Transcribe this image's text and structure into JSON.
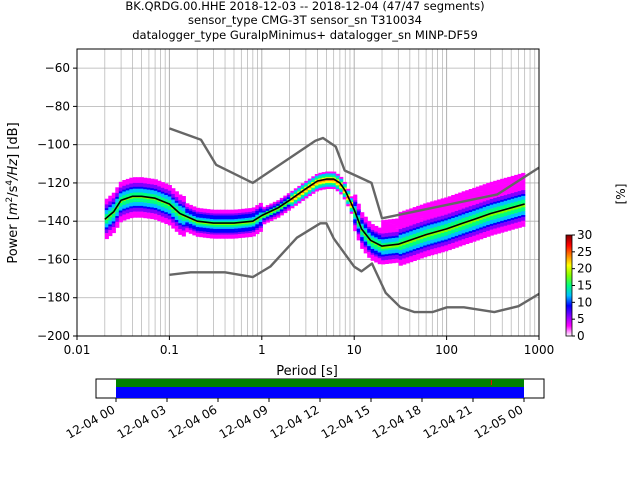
{
  "title_lines": [
    "BK.QRDG.00.HHE   2018-12-03 -- 2018-12-04  (47/47 segments)",
    "sensor_type CMG-3T sensor_sn T310034",
    "datalogger_type GuralpMinimus+ datalogger_sn MINP-DF59"
  ],
  "colors": {
    "median": "#000000",
    "noise_model": "#666666",
    "grid": "#b0b0b0",
    "timeline_ok": "#008000",
    "timeline_data": "#0000ff",
    "timeline_gap": "#ff0000"
  },
  "chart_data": [
    {
      "type": "heatmap",
      "subtype": "ppsd",
      "xlabel": "Period [s]",
      "ylabel": "Power [m²/s⁴/Hz] [dB]",
      "ylabel_parts": {
        "prefix": "Power [",
        "m": "m",
        "exp2": "2",
        "slash_s": "/s",
        "exp4": "4",
        "hz": "/Hz",
        "suffix": "] [dB]"
      },
      "x_scale": "log",
      "xlim": [
        0.01,
        1000
      ],
      "ylim": [
        -200,
        -50
      ],
      "x_ticks": [
        0.01,
        0.1,
        1,
        10,
        100,
        1000
      ],
      "x_tick_labels": [
        "0.01",
        "0.1",
        "1",
        "10",
        "100",
        "1000"
      ],
      "y_ticks": [
        -60,
        -80,
        -100,
        -120,
        -140,
        -160,
        -180,
        -200
      ],
      "y_tick_labels": [
        "−60",
        "−80",
        "−100",
        "−120",
        "−140",
        "−160",
        "−180",
        "−200"
      ],
      "grid": true,
      "colorbar": {
        "label": "[%]",
        "range": [
          0,
          30
        ],
        "ticks": [
          0,
          5,
          10,
          15,
          20,
          25,
          30
        ],
        "tick_labels": [
          "0",
          "5",
          "10",
          "15",
          "20",
          "25",
          "30"
        ],
        "colormap": [
          "#ffffff",
          "#ff00ff",
          "#8000ff",
          "#0000ff",
          "#00c0ff",
          "#00ff80",
          "#80ff00",
          "#ffff00",
          "#ff8000",
          "#ff0000",
          "#800000"
        ]
      },
      "series": [
        {
          "name": "median",
          "role": "median",
          "x": [
            0.02,
            0.025,
            0.03,
            0.04,
            0.05,
            0.07,
            0.1,
            0.13,
            0.2,
            0.3,
            0.5,
            0.8,
            1,
            1.5,
            2,
            3,
            4,
            5,
            6,
            7,
            8,
            10,
            12,
            15,
            20,
            30,
            40,
            60,
            100,
            150,
            200,
            300,
            500,
            700
          ],
          "y": [
            -139,
            -135,
            -129,
            -127,
            -127,
            -128,
            -131,
            -136,
            -140,
            -141,
            -141,
            -140,
            -137,
            -133,
            -129,
            -123,
            -119,
            -118,
            -118,
            -120,
            -124,
            -134,
            -144,
            -150,
            -153,
            -152,
            -150,
            -147,
            -144,
            -141,
            -139,
            -136,
            -133,
            -131
          ]
        },
        {
          "name": "high noise model",
          "role": "noise_model",
          "x": [
            0.1,
            0.22,
            0.32,
            0.8,
            3.8,
            4.6,
            6.3,
            7.9,
            15.4,
            20,
            354.8,
            1000
          ],
          "y": [
            -91.5,
            -97.4,
            -110.5,
            -120,
            -98,
            -96.5,
            -101,
            -113.5,
            -120,
            -138.5,
            -126,
            -112
          ]
        },
        {
          "name": "low noise model",
          "role": "noise_model",
          "x": [
            0.1,
            0.17,
            0.4,
            0.8,
            1.24,
            2.4,
            4.3,
            5,
            6,
            10,
            12,
            15.6,
            21.9,
            31.6,
            45,
            70,
            101,
            154,
            328,
            600,
            1000
          ],
          "y": [
            -168,
            -166.7,
            -166.7,
            -169.2,
            -163.7,
            -148.6,
            -141.1,
            -141.1,
            -149,
            -163.8,
            -166.2,
            -162.1,
            -177.5,
            -185,
            -187.5,
            -187.5,
            -185,
            -185,
            -187.5,
            -184.4,
            -178
          ]
        }
      ]
    },
    {
      "type": "bar",
      "subtype": "timeline",
      "x_tick_labels": [
        "12-04 00",
        "12-04 03",
        "12-04 06",
        "12-04 09",
        "12-04 12",
        "12-04 15",
        "12-04 18",
        "12-04 21",
        "12-05 00"
      ],
      "coverage_start_fraction": 0,
      "coverage_end_fraction": 1,
      "segments": 47,
      "gap_marker_fraction": 0.92
    }
  ]
}
